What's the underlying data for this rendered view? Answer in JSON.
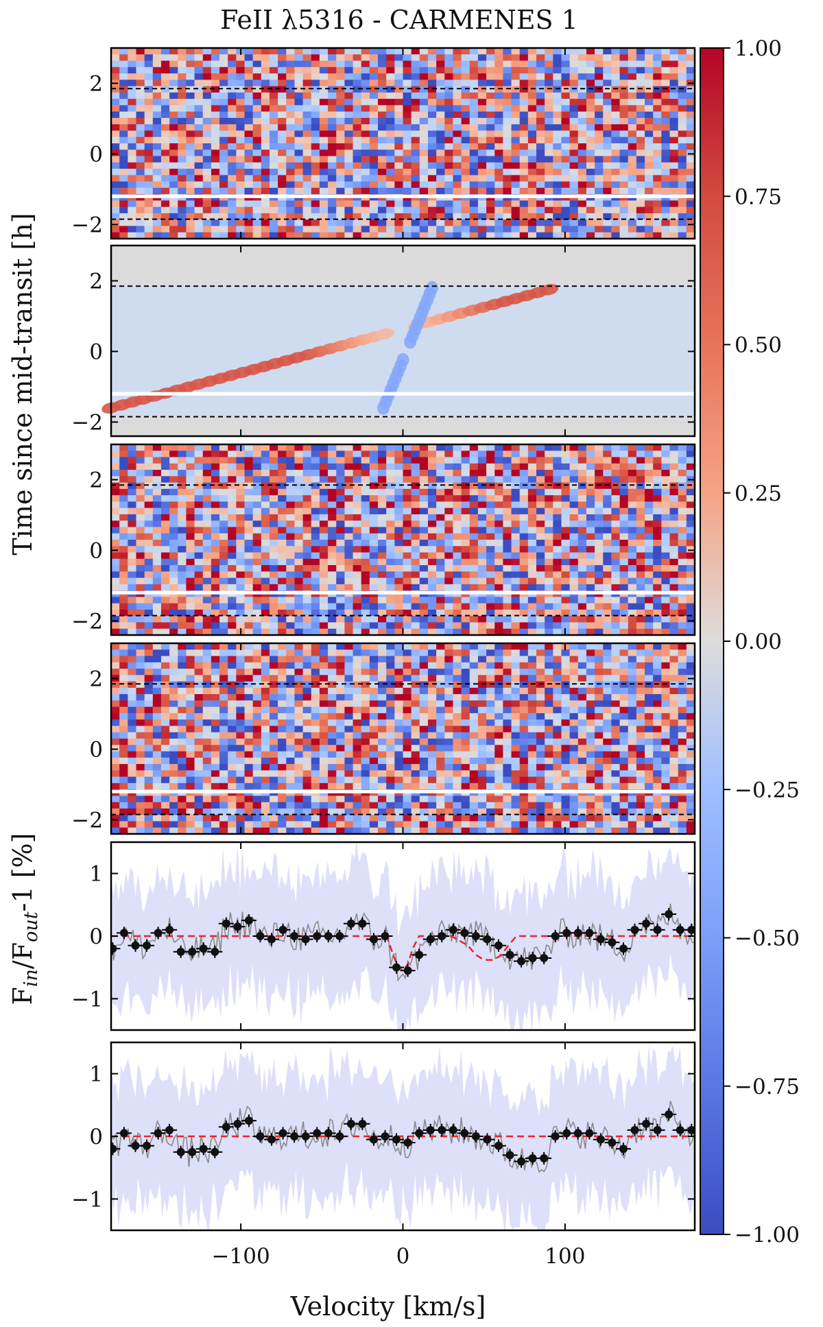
{
  "chart_data": {
    "title": "FeII λ5316 - CARMENES 1",
    "type": "heatmap",
    "xlabel": "Velocity [km/s]",
    "ylabel_top": "Time since mid-transit [h]",
    "ylabel_bottom": {
      "text": "F",
      "sub1": "in",
      "mid": "/F",
      "sub2": "out",
      "tail": "-1 [%]"
    },
    "x_range": [
      -180,
      180
    ],
    "x_ticks": [
      -100,
      0,
      100
    ],
    "x_tick_labels": [
      "−100",
      "0",
      "100"
    ],
    "colorbar": {
      "range": [
        -1.0,
        1.0
      ],
      "colormap": "coolwarm",
      "ticks": [
        1.0,
        0.75,
        0.5,
        0.25,
        0.0,
        -0.25,
        -0.5,
        -0.75,
        -1.0
      ],
      "tick_labels": [
        "1.00",
        "0.75",
        "0.50",
        "0.25",
        "0.00",
        "−0.25",
        "−0.50",
        "−0.75",
        "−1.00"
      ]
    },
    "heatmap_panels": [
      {
        "name": "observed",
        "kind": "noise",
        "y_range": [
          -2.4,
          3.0
        ],
        "y_ticks": [
          2,
          0,
          -2
        ],
        "y_tick_labels": [
          "2",
          "0",
          "−2"
        ],
        "transit_lines_h": [
          1.85,
          -1.85
        ],
        "gap_h": [
          -1.25,
          -1.15
        ]
      },
      {
        "name": "model",
        "kind": "model",
        "y_range": [
          -2.4,
          3.0
        ],
        "y_ticks": [
          2,
          0,
          -2
        ],
        "y_tick_labels": [
          "2",
          "0",
          "−2"
        ],
        "transit_lines_h": [
          1.85,
          -1.85
        ],
        "gap_h": [
          -1.25,
          -1.15
        ]
      },
      {
        "name": "residual-a",
        "kind": "noise",
        "y_range": [
          -2.4,
          3.0
        ],
        "y_ticks": [
          2,
          0,
          -2
        ],
        "y_tick_labels": [
          "2",
          "0",
          "−2"
        ],
        "transit_lines_h": [
          1.85,
          -1.85
        ],
        "gap_h": [
          -1.25,
          -1.15
        ]
      },
      {
        "name": "residual-b",
        "kind": "noise",
        "y_range": [
          -2.4,
          3.0
        ],
        "y_ticks": [
          2,
          0,
          -2
        ],
        "y_tick_labels": [
          "2",
          "0",
          "−2"
        ],
        "transit_lines_h": [
          1.85,
          -1.85
        ],
        "gap_h": [
          -1.25,
          -1.15
        ]
      }
    ],
    "spectrum_panels": [
      {
        "name": "transmission-spectrum-1",
        "y_range": [
          -1.5,
          1.5
        ],
        "y_ticks": [
          1,
          0,
          -1
        ],
        "y_tick_labels": [
          "1",
          "0",
          "−1"
        ],
        "binned_points": {
          "x": [
            -179,
            -172,
            -165,
            -158,
            -151,
            -144,
            -137,
            -130,
            -123,
            -116,
            -109,
            -102,
            -95,
            -88,
            -81,
            -74,
            -67,
            -60,
            -53,
            -46,
            -39,
            -32,
            -25,
            -18,
            -11,
            -4,
            3,
            10,
            17,
            24,
            31,
            38,
            45,
            52,
            59,
            66,
            73,
            80,
            87,
            94,
            101,
            108,
            115,
            122,
            129,
            136,
            143,
            150,
            157,
            164,
            171,
            178
          ],
          "y": [
            -0.2,
            0.05,
            -0.15,
            -0.15,
            0.05,
            0.1,
            -0.25,
            -0.25,
            -0.2,
            -0.25,
            0.2,
            0.15,
            0.25,
            0.0,
            -0.05,
            0.1,
            0.0,
            -0.05,
            0.0,
            0.0,
            0.0,
            0.2,
            0.2,
            -0.05,
            0.0,
            -0.5,
            -0.55,
            -0.3,
            -0.05,
            0.0,
            0.1,
            0.05,
            0.0,
            -0.05,
            -0.15,
            -0.3,
            -0.4,
            -0.35,
            -0.35,
            0.0,
            0.05,
            0.05,
            0.05,
            -0.05,
            -0.1,
            -0.2,
            0.1,
            0.2,
            0.1,
            0.35,
            0.1,
            0.1
          ],
          "err": [
            0.1,
            0.1,
            0.1,
            0.1,
            0.1,
            0.1,
            0.1,
            0.1,
            0.1,
            0.1,
            0.1,
            0.1,
            0.1,
            0.1,
            0.1,
            0.1,
            0.1,
            0.1,
            0.1,
            0.1,
            0.1,
            0.1,
            0.1,
            0.1,
            0.1,
            0.1,
            0.1,
            0.1,
            0.1,
            0.1,
            0.1,
            0.1,
            0.1,
            0.1,
            0.1,
            0.1,
            0.1,
            0.1,
            0.1,
            0.1,
            0.1,
            0.1,
            0.1,
            0.1,
            0.1,
            0.1,
            0.1,
            0.1,
            0.1,
            0.1,
            0.1,
            0.1
          ]
        },
        "model_line": {
          "x": [
            -180,
            -10,
            -6,
            -3,
            0,
            3,
            6,
            10,
            30,
            40,
            45,
            50,
            55,
            60,
            65,
            70,
            180
          ],
          "y": [
            0,
            0,
            -0.3,
            -0.5,
            -0.55,
            -0.45,
            -0.2,
            0,
            0,
            -0.15,
            -0.3,
            -0.38,
            -0.38,
            -0.32,
            -0.15,
            0,
            0
          ]
        },
        "uncertainty_band_halfwidth": 1.0
      },
      {
        "name": "transmission-spectrum-2",
        "y_range": [
          -1.5,
          1.5
        ],
        "y_ticks": [
          1,
          0,
          -1
        ],
        "y_tick_labels": [
          "1",
          "0",
          "−1"
        ],
        "binned_points": {
          "x": [
            -179,
            -172,
            -165,
            -158,
            -151,
            -144,
            -137,
            -130,
            -123,
            -116,
            -109,
            -102,
            -95,
            -88,
            -81,
            -74,
            -67,
            -60,
            -53,
            -46,
            -39,
            -32,
            -25,
            -18,
            -11,
            -4,
            3,
            10,
            17,
            24,
            31,
            38,
            45,
            52,
            59,
            66,
            73,
            80,
            87,
            94,
            101,
            108,
            115,
            122,
            129,
            136,
            143,
            150,
            157,
            164,
            171,
            178
          ],
          "y": [
            -0.2,
            0.05,
            -0.15,
            -0.15,
            0.05,
            0.1,
            -0.25,
            -0.25,
            -0.2,
            -0.25,
            0.15,
            0.2,
            0.25,
            0.0,
            -0.05,
            0.05,
            0.0,
            0.0,
            0.05,
            0.05,
            0.0,
            0.2,
            0.2,
            -0.05,
            0.0,
            -0.05,
            -0.1,
            0.05,
            0.1,
            0.1,
            0.1,
            0.05,
            0.0,
            -0.05,
            -0.15,
            -0.3,
            -0.4,
            -0.35,
            -0.35,
            0.0,
            0.05,
            0.05,
            0.05,
            -0.05,
            -0.1,
            -0.2,
            0.1,
            0.2,
            0.1,
            0.35,
            0.1,
            0.1
          ],
          "err": [
            0.1,
            0.1,
            0.1,
            0.1,
            0.1,
            0.1,
            0.1,
            0.1,
            0.1,
            0.1,
            0.1,
            0.1,
            0.1,
            0.1,
            0.1,
            0.1,
            0.1,
            0.1,
            0.1,
            0.1,
            0.1,
            0.1,
            0.1,
            0.1,
            0.1,
            0.1,
            0.1,
            0.1,
            0.1,
            0.1,
            0.1,
            0.1,
            0.1,
            0.1,
            0.1,
            0.1,
            0.1,
            0.1,
            0.1,
            0.1,
            0.1,
            0.1,
            0.1,
            0.1,
            0.1,
            0.1,
            0.1,
            0.1,
            0.1,
            0.1,
            0.1,
            0.1
          ]
        },
        "model_line": {
          "x": [
            -180,
            180
          ],
          "y": [
            0,
            0
          ]
        },
        "uncertainty_band_halfwidth": 1.0
      }
    ]
  }
}
